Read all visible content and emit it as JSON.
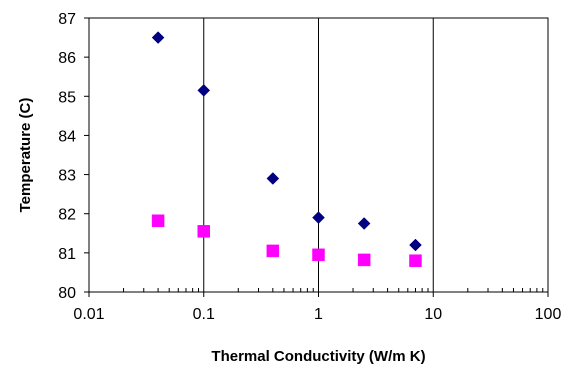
{
  "chart_data": {
    "type": "scatter",
    "title": "",
    "xlabel": "Thermal Conductivity (W/m K)",
    "ylabel": "Temperature (C)",
    "xscale": "log",
    "xlim": [
      0.01,
      100
    ],
    "ylim": [
      80,
      87
    ],
    "x_ticks": [
      0.01,
      0.1,
      1,
      10,
      100
    ],
    "x_tick_labels": [
      "0.01",
      "0.1",
      "1",
      "10",
      "100"
    ],
    "y_ticks": [
      80,
      81,
      82,
      83,
      84,
      85,
      86,
      87
    ],
    "y_tick_labels": [
      "80",
      "81",
      "82",
      "83",
      "84",
      "85",
      "86",
      "87"
    ],
    "grid": "vertical major lines",
    "legend": "none",
    "series": [
      {
        "marker": "diamond",
        "color": "#000080",
        "x": [
          0.04,
          0.1,
          0.4,
          1,
          2.5,
          7
        ],
        "y": [
          86.5,
          85.15,
          82.9,
          81.9,
          81.75,
          81.2
        ]
      },
      {
        "marker": "square",
        "color": "#ff00ff",
        "x": [
          0.04,
          0.1,
          0.4,
          1,
          2.5,
          7
        ],
        "y": [
          81.82,
          81.55,
          81.05,
          80.95,
          80.82,
          80.8
        ]
      }
    ]
  }
}
